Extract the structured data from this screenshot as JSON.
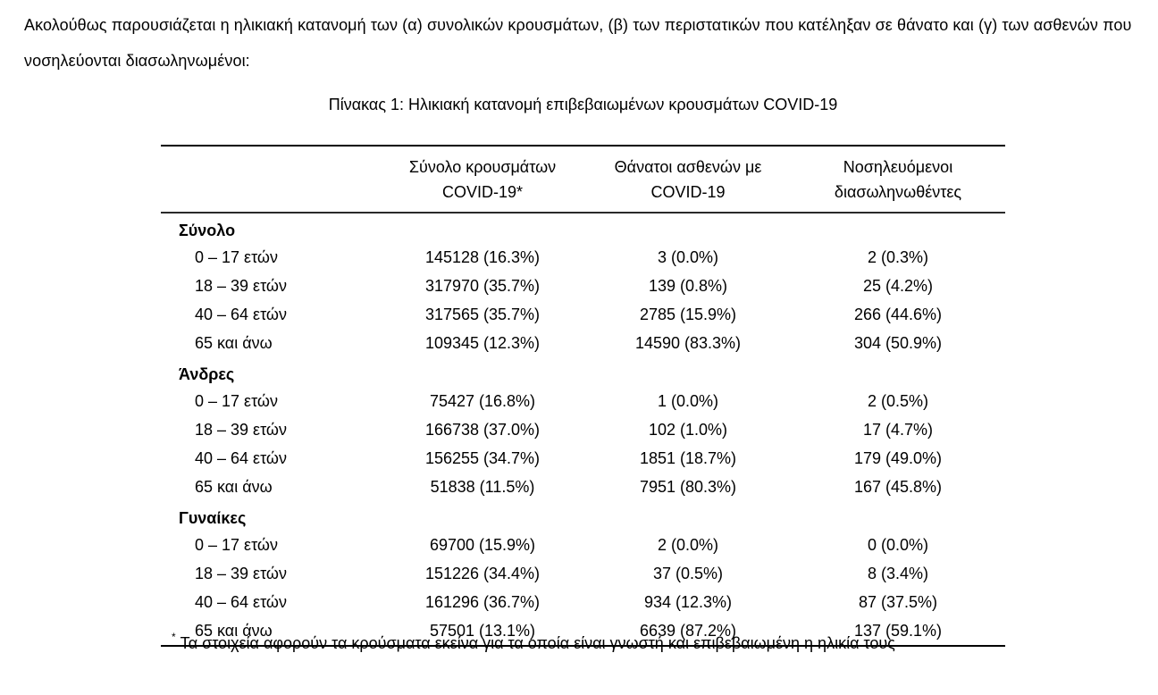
{
  "intro": {
    "text": "Ακολούθως παρουσιάζεται η ηλικιακή κατανομή των (α) συνολικών κρουσμάτων, (β) των περιστατικών που κατέληξαν σε θάνατο και (γ) των ασθενών που νοσηλεύονται διασωληνωμένοι:"
  },
  "table": {
    "title": "Πίνακας 1: Ηλικιακή κατανομή επιβεβαιωμένων κρουσμάτων COVID-19",
    "columns": [
      {
        "line1": "",
        "line2": ""
      },
      {
        "line1": "Σύνολο κρουσμάτων",
        "line2": "COVID-19*"
      },
      {
        "line1": "Θάνατοι ασθενών με",
        "line2": "COVID-19"
      },
      {
        "line1": "Νοσηλευόμενοι",
        "line2": "διασωληνωθέντες"
      }
    ],
    "sections": [
      {
        "label": "Σύνολο",
        "rows": [
          {
            "age": "0 – 17 ετών",
            "cases": "145128 (16.3%)",
            "deaths": "3 (0.0%)",
            "intubated": "2 (0.3%)"
          },
          {
            "age": "18 – 39 ετών",
            "cases": "317970 (35.7%)",
            "deaths": "139 (0.8%)",
            "intubated": "25 (4.2%)"
          },
          {
            "age": "40 – 64 ετών",
            "cases": "317565 (35.7%)",
            "deaths": "2785 (15.9%)",
            "intubated": "266 (44.6%)"
          },
          {
            "age": "65 και άνω",
            "cases": "109345 (12.3%)",
            "deaths": "14590 (83.3%)",
            "intubated": "304 (50.9%)"
          }
        ]
      },
      {
        "label": "Άνδρες",
        "rows": [
          {
            "age": "0 – 17 ετών",
            "cases": "75427 (16.8%)",
            "deaths": "1 (0.0%)",
            "intubated": "2 (0.5%)"
          },
          {
            "age": "18 – 39 ετών",
            "cases": "166738 (37.0%)",
            "deaths": "102 (1.0%)",
            "intubated": "17 (4.7%)"
          },
          {
            "age": "40 – 64 ετών",
            "cases": "156255 (34.7%)",
            "deaths": "1851 (18.7%)",
            "intubated": "179 (49.0%)"
          },
          {
            "age": "65 και άνω",
            "cases": "51838 (11.5%)",
            "deaths": "7951 (80.3%)",
            "intubated": "167 (45.8%)"
          }
        ]
      },
      {
        "label": "Γυναίκες",
        "rows": [
          {
            "age": "0 – 17 ετών",
            "cases": "69700 (15.9%)",
            "deaths": "2 (0.0%)",
            "intubated": "0 (0.0%)"
          },
          {
            "age": "18 – 39 ετών",
            "cases": "151226 (34.4%)",
            "deaths": "37 (0.5%)",
            "intubated": "8 (3.4%)"
          },
          {
            "age": "40 – 64 ετών",
            "cases": "161296 (36.7%)",
            "deaths": "934 (12.3%)",
            "intubated": "87 (37.5%)"
          },
          {
            "age": "65 και άνω",
            "cases": "57501 (13.1%)",
            "deaths": "6639 (87.2%)",
            "intubated": "137 (59.1%)"
          }
        ]
      }
    ],
    "footnote": {
      "marker": "*",
      "text": "Τα στοιχεία αφορούν τα κρούσματα εκείνα για τα οποία είναι γνωστή και επιβεβαιωμένη η ηλικία τους"
    }
  }
}
